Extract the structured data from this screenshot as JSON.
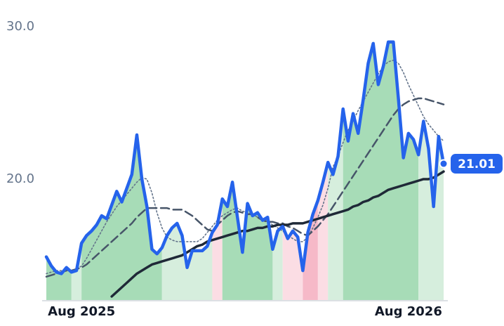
{
  "chart_data": {
    "type": "line",
    "x": [
      0,
      1,
      2,
      3,
      4,
      5,
      6,
      7,
      8,
      9,
      10,
      11,
      12,
      13,
      14,
      15,
      16,
      17,
      18,
      19,
      20,
      21,
      22,
      23,
      24,
      25,
      26,
      27,
      28,
      29,
      30,
      31,
      32,
      33,
      34,
      35,
      36,
      37,
      38,
      39,
      40,
      41,
      42,
      43,
      44,
      45,
      46,
      47,
      48,
      49,
      50,
      51,
      52,
      53,
      54,
      55,
      56,
      57,
      58,
      59,
      60,
      61,
      62,
      63,
      64,
      65,
      66,
      67,
      68,
      69,
      70,
      71,
      72,
      73,
      74,
      75,
      76,
      77,
      78,
      79
    ],
    "xlim": [
      0,
      79
    ],
    "xticks": [
      {
        "value": 7,
        "label": "Aug 2025"
      },
      {
        "value": 72,
        "label": "Aug 2026"
      }
    ],
    "ylim": [
      12.07,
      30
    ],
    "yticks": [
      {
        "value": 20,
        "label": "20.0"
      },
      {
        "value": 30,
        "label": "30.0"
      }
    ],
    "series": [
      {
        "color": "#2563eb",
        "style": "solid",
        "width": 4.5,
        "values": [
          14.9,
          14.3,
          13.9,
          13.8,
          14.2,
          13.9,
          14.0,
          15.8,
          16.3,
          16.6,
          17.0,
          17.6,
          17.4,
          18.3,
          19.2,
          18.5,
          19.4,
          20.3,
          22.9,
          20.0,
          18.2,
          15.4,
          15.1,
          15.5,
          16.3,
          16.8,
          17.1,
          16.3,
          14.2,
          15.3,
          15.3,
          15.3,
          15.6,
          16.5,
          17.0,
          18.7,
          18.2,
          19.8,
          17.5,
          15.2,
          18.4,
          17.6,
          17.8,
          17.3,
          17.5,
          15.4,
          16.6,
          16.9,
          16.1,
          16.6,
          16.2,
          14.0,
          16.5,
          17.7,
          18.6,
          19.8,
          21.1,
          20.3,
          21.5,
          24.6,
          22.5,
          24.3,
          23.0,
          25.2,
          27.6,
          28.9,
          26.2,
          27.4,
          29.0,
          29.0,
          25.3,
          21.4,
          23.0,
          22.6,
          21.6,
          23.8,
          22.0,
          18.2,
          22.8,
          21.01
        ]
      },
      {
        "color": "#1f2937",
        "style": "solid",
        "width": 3.5,
        "values": [
          null,
          null,
          null,
          null,
          null,
          null,
          null,
          null,
          null,
          null,
          null,
          null,
          null,
          12.3,
          12.6,
          12.9,
          13.2,
          13.5,
          13.8,
          14.0,
          14.2,
          14.4,
          14.5,
          14.6,
          14.7,
          14.8,
          14.9,
          15.0,
          15.2,
          15.4,
          15.6,
          15.7,
          15.9,
          16.0,
          16.1,
          16.2,
          16.3,
          16.4,
          16.5,
          16.6,
          16.6,
          16.7,
          16.8,
          16.8,
          16.9,
          16.9,
          17.0,
          17.0,
          17.0,
          17.1,
          17.1,
          17.1,
          17.2,
          17.3,
          17.4,
          17.5,
          17.6,
          17.7,
          17.8,
          17.9,
          18.0,
          18.2,
          18.3,
          18.5,
          18.6,
          18.8,
          18.9,
          19.1,
          19.3,
          19.4,
          19.5,
          19.6,
          19.7,
          19.8,
          19.9,
          20.0,
          20.0,
          20.1,
          20.3,
          20.5
        ]
      },
      {
        "color": "#475569",
        "style": "dashed",
        "width": 2.5,
        "values": [
          13.6,
          13.7,
          13.8,
          13.9,
          14.0,
          14.0,
          14.1,
          14.2,
          14.4,
          14.7,
          15.0,
          15.3,
          15.6,
          15.9,
          16.2,
          16.5,
          16.8,
          17.1,
          17.5,
          17.8,
          18.1,
          18.1,
          18.1,
          18.1,
          18.1,
          18.0,
          18.0,
          18.0,
          17.8,
          17.6,
          17.3,
          17.0,
          16.7,
          16.6,
          17.0,
          17.3,
          17.6,
          17.8,
          17.9,
          17.8,
          17.7,
          17.7,
          17.5,
          17.3,
          17.2,
          17.2,
          17.1,
          17.1,
          16.9,
          16.8,
          16.6,
          16.4,
          16.3,
          16.6,
          16.9,
          17.3,
          17.7,
          18.2,
          18.7,
          19.2,
          19.7,
          20.2,
          20.7,
          21.2,
          21.7,
          22.2,
          22.7,
          23.2,
          23.7,
          24.2,
          24.6,
          24.9,
          25.1,
          25.2,
          25.3,
          25.3,
          25.2,
          25.1,
          25.0,
          24.9
        ]
      },
      {
        "color": "#64748b",
        "style": "dotted",
        "width": 1.6,
        "values": [
          13.8,
          13.9,
          14.0,
          14.0,
          14.0,
          14.0,
          14.1,
          14.3,
          14.8,
          15.4,
          16.0,
          16.6,
          17.2,
          17.7,
          18.2,
          18.6,
          19.0,
          19.4,
          19.8,
          20.1,
          20.0,
          19.1,
          17.8,
          16.8,
          16.2,
          16.0,
          15.9,
          15.9,
          15.9,
          15.9,
          15.9,
          16.1,
          16.5,
          16.9,
          17.3,
          17.6,
          17.8,
          18.0,
          18.1,
          17.9,
          17.8,
          17.7,
          17.5,
          17.4,
          17.2,
          17.0,
          16.8,
          16.6,
          16.3,
          16.1,
          15.9,
          15.9,
          16.2,
          16.8,
          17.5,
          18.3,
          19.4,
          20.8,
          21.5,
          22.4,
          23.2,
          23.8,
          24.5,
          25.1,
          25.7,
          26.3,
          26.9,
          27.4,
          27.7,
          27.8,
          27.6,
          27.0,
          26.2,
          25.5,
          24.8,
          24.1,
          23.6,
          23.2,
          22.8,
          22.5
        ]
      }
    ],
    "zones": [
      {
        "from": 0,
        "to": 5,
        "color": "#a7dcb7"
      },
      {
        "from": 5,
        "to": 7,
        "color": "#d6eedd"
      },
      {
        "from": 7,
        "to": 23,
        "color": "#a7dcb7"
      },
      {
        "from": 23,
        "to": 33,
        "color": "#d6eedd"
      },
      {
        "from": 33,
        "to": 35,
        "color": "#fbdde4"
      },
      {
        "from": 35,
        "to": 45,
        "color": "#a7dcb7"
      },
      {
        "from": 45,
        "to": 47,
        "color": "#d6eedd"
      },
      {
        "from": 47,
        "to": 51,
        "color": "#fbdde4"
      },
      {
        "from": 51,
        "to": 54,
        "color": "#f6b9c8"
      },
      {
        "from": 54,
        "to": 56,
        "color": "#fbdde4"
      },
      {
        "from": 56,
        "to": 59,
        "color": "#d6eedd"
      },
      {
        "from": 59,
        "to": 74,
        "color": "#a7dcb7"
      },
      {
        "from": 74,
        "to": 79,
        "color": "#d6eedd"
      }
    ],
    "last_label_color": "#2563eb"
  }
}
